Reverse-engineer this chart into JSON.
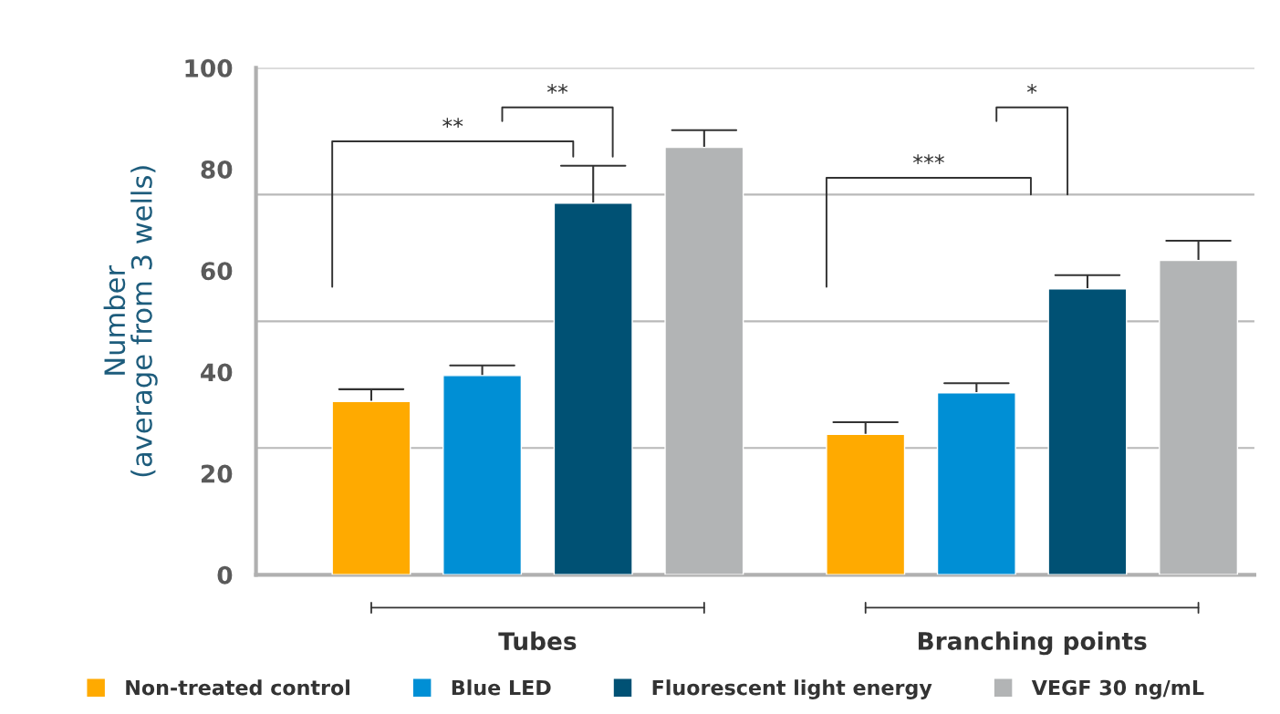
{
  "chart_data": {
    "type": "bar",
    "ylabel": "Number\n(average from 3 wells)",
    "categories": [
      "Tubes",
      "Branching points"
    ],
    "series": [
      {
        "name": "Non-treated control",
        "color": "#ffaa00",
        "values": [
          34.2,
          27.7
        ],
        "errors": [
          [
            34.2,
            36.6
          ],
          [
            27.7,
            30.1
          ]
        ]
      },
      {
        "name": "Blue LED",
        "color": "#008fd5",
        "values": [
          39.3,
          35.9
        ],
        "errors": [
          [
            39.3,
            41.3
          ],
          [
            35.9,
            37.8
          ]
        ]
      },
      {
        "name": "Fluorescent light energy",
        "color": "#005174",
        "values": [
          73.3,
          56.4
        ],
        "errors": [
          [
            73.3,
            80.7
          ],
          [
            56.4,
            59.1
          ]
        ]
      },
      {
        "name": "VEGF 30 ng/mL",
        "color": "#b2b4b5",
        "values": [
          84.3,
          62.0
        ],
        "errors": [
          [
            84.3,
            87.7
          ],
          [
            62.0,
            65.9
          ]
        ]
      }
    ],
    "ylim": [
      0,
      100
    ],
    "yticks": [
      0,
      20,
      40,
      60,
      80,
      100
    ],
    "ref_lines": [
      {
        "axis": "y",
        "value": 25,
        "color": "#b9b9b9"
      },
      {
        "axis": "y",
        "value": 50,
        "color": "#b9b9b9"
      },
      {
        "axis": "y",
        "value": 75,
        "color": "#b9b9b9"
      },
      {
        "axis": "y",
        "value": 100,
        "color": "#b9b9b9"
      }
    ],
    "annotations": [
      "**",
      "**",
      "***",
      "*"
    ],
    "legend": "bottom",
    "grid": false
  }
}
